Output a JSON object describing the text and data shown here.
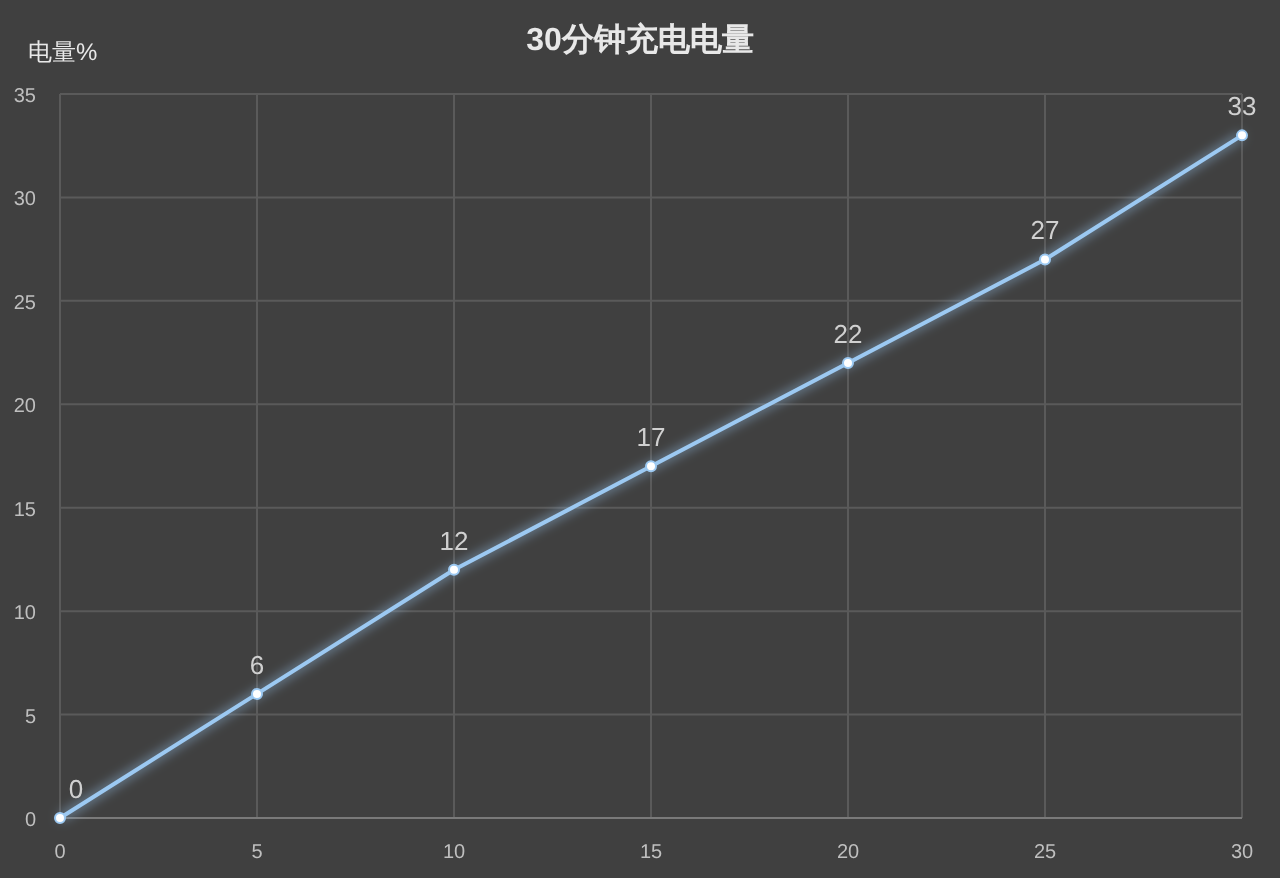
{
  "chart_data": {
    "type": "line",
    "title": "30分钟充电电量",
    "ylabel": "电量%",
    "x": [
      0,
      5,
      10,
      15,
      20,
      25,
      30
    ],
    "series": [
      {
        "color": "#9cc9f2",
        "values": [
          0,
          6,
          12,
          17,
          22,
          27,
          33
        ]
      }
    ],
    "xlim": [
      0,
      30
    ],
    "xticks": [
      0,
      5,
      10,
      15,
      20,
      25,
      30
    ],
    "ylim": [
      0,
      35
    ],
    "yticks": [
      0,
      5,
      10,
      15,
      20,
      25,
      30,
      35
    ],
    "grid": true,
    "marker": "circle",
    "data_labels": true
  }
}
